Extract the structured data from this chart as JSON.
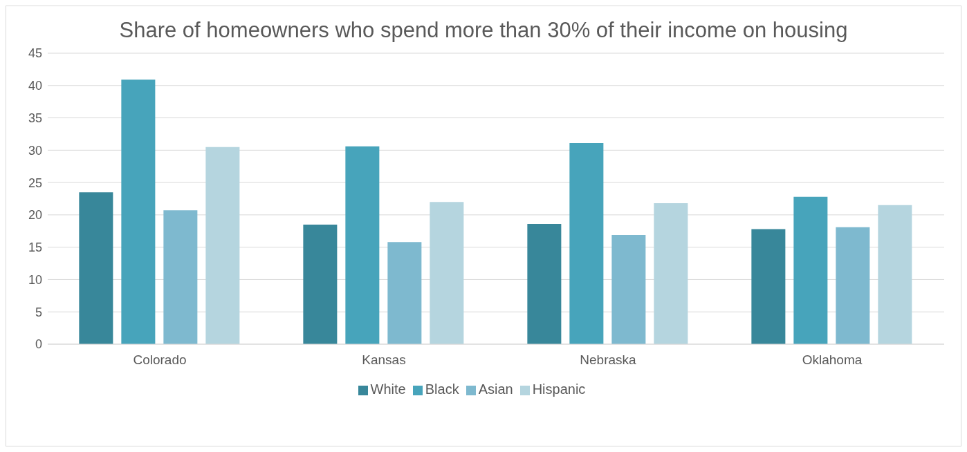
{
  "chart_data": {
    "type": "bar",
    "title": "Share of homeowners who spend more than 30% of their income on housing",
    "categories": [
      "Colorado",
      "Kansas",
      "Nebraska",
      "Oklahoma"
    ],
    "series": [
      {
        "name": "White",
        "color": "#38879a",
        "values": [
          23.5,
          18.5,
          18.6,
          17.8
        ]
      },
      {
        "name": "Black",
        "color": "#47a4bb",
        "values": [
          40.9,
          30.6,
          31.1,
          22.8
        ]
      },
      {
        "name": "Asian",
        "color": "#7eb9cf",
        "values": [
          20.7,
          15.8,
          16.9,
          18.1
        ]
      },
      {
        "name": "Hispanic",
        "color": "#b5d5df",
        "values": [
          30.5,
          22.0,
          21.8,
          21.5
        ]
      }
    ],
    "ylim": [
      0,
      45
    ],
    "yticks": [
      0,
      5,
      10,
      15,
      20,
      25,
      30,
      35,
      40,
      45
    ],
    "grid": "y",
    "legend": "bottom"
  }
}
